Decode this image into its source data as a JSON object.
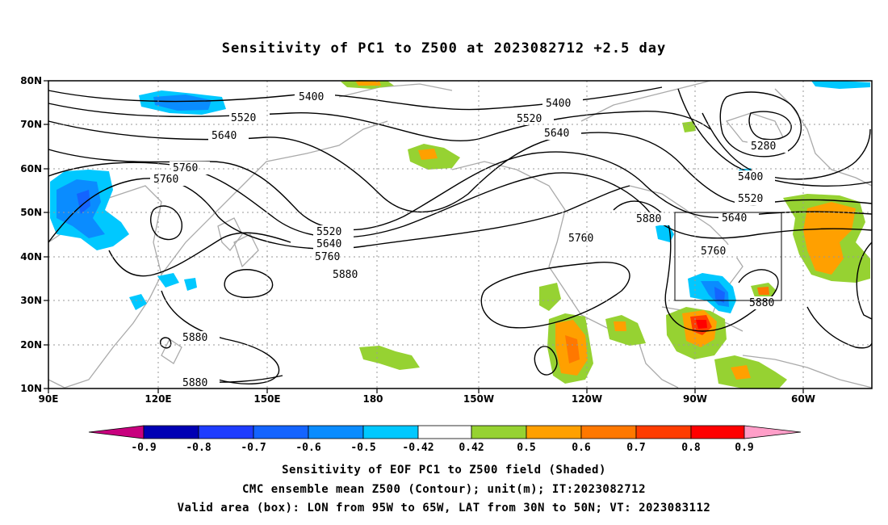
{
  "title": "Sensitivity of PC1 to Z500 at 2023082712 +2.5 day",
  "map": {
    "lat_labels": [
      "80N",
      "70N",
      "60N",
      "50N",
      "40N",
      "30N",
      "20N",
      "10N"
    ],
    "lon_labels": [
      "90E",
      "120E",
      "150E",
      "180",
      "150W",
      "120W",
      "90W",
      "60W"
    ],
    "valid_box": {
      "lon_west": "95W",
      "lon_east": "65W",
      "lat_south": "30N",
      "lat_north": "50N"
    },
    "contour_labels": [
      "5400",
      "5520",
      "5640",
      "5760",
      "5760",
      "5880",
      "5880",
      "5880",
      "5400",
      "5520",
      "5640",
      "5520",
      "5640",
      "5760",
      "5760",
      "5880",
      "5280",
      "5400",
      "5520",
      "5640",
      "5760",
      "5880"
    ],
    "colors": {
      "contour": "#000000",
      "coast": "#aaaaaa",
      "grid": "#999999"
    }
  },
  "colorbar": {
    "labels": [
      "-0.9",
      "-0.8",
      "-0.7",
      "-0.6",
      "-0.5",
      "-0.42",
      "0.42",
      "0.5",
      "0.6",
      "0.7",
      "0.8",
      "0.9"
    ],
    "colors": [
      "#c8007e",
      "#0000b4",
      "#1e3cff",
      "#1464ff",
      "#0a8cff",
      "#00c8ff",
      "#ffffff",
      "#96d232",
      "#ffa000",
      "#ff7800",
      "#ff3c00",
      "#ff0000",
      "#ff9ec8"
    ]
  },
  "captions": {
    "line1": "Sensitivity of EOF PC1 to Z500 field (Shaded)",
    "line2": "CMC ensemble mean Z500 (Contour); unit(m); IT:2023082712",
    "line3": "Valid area (box): LON from 95W to 65W, LAT from 30N to 50N; VT: 2023083112"
  }
}
